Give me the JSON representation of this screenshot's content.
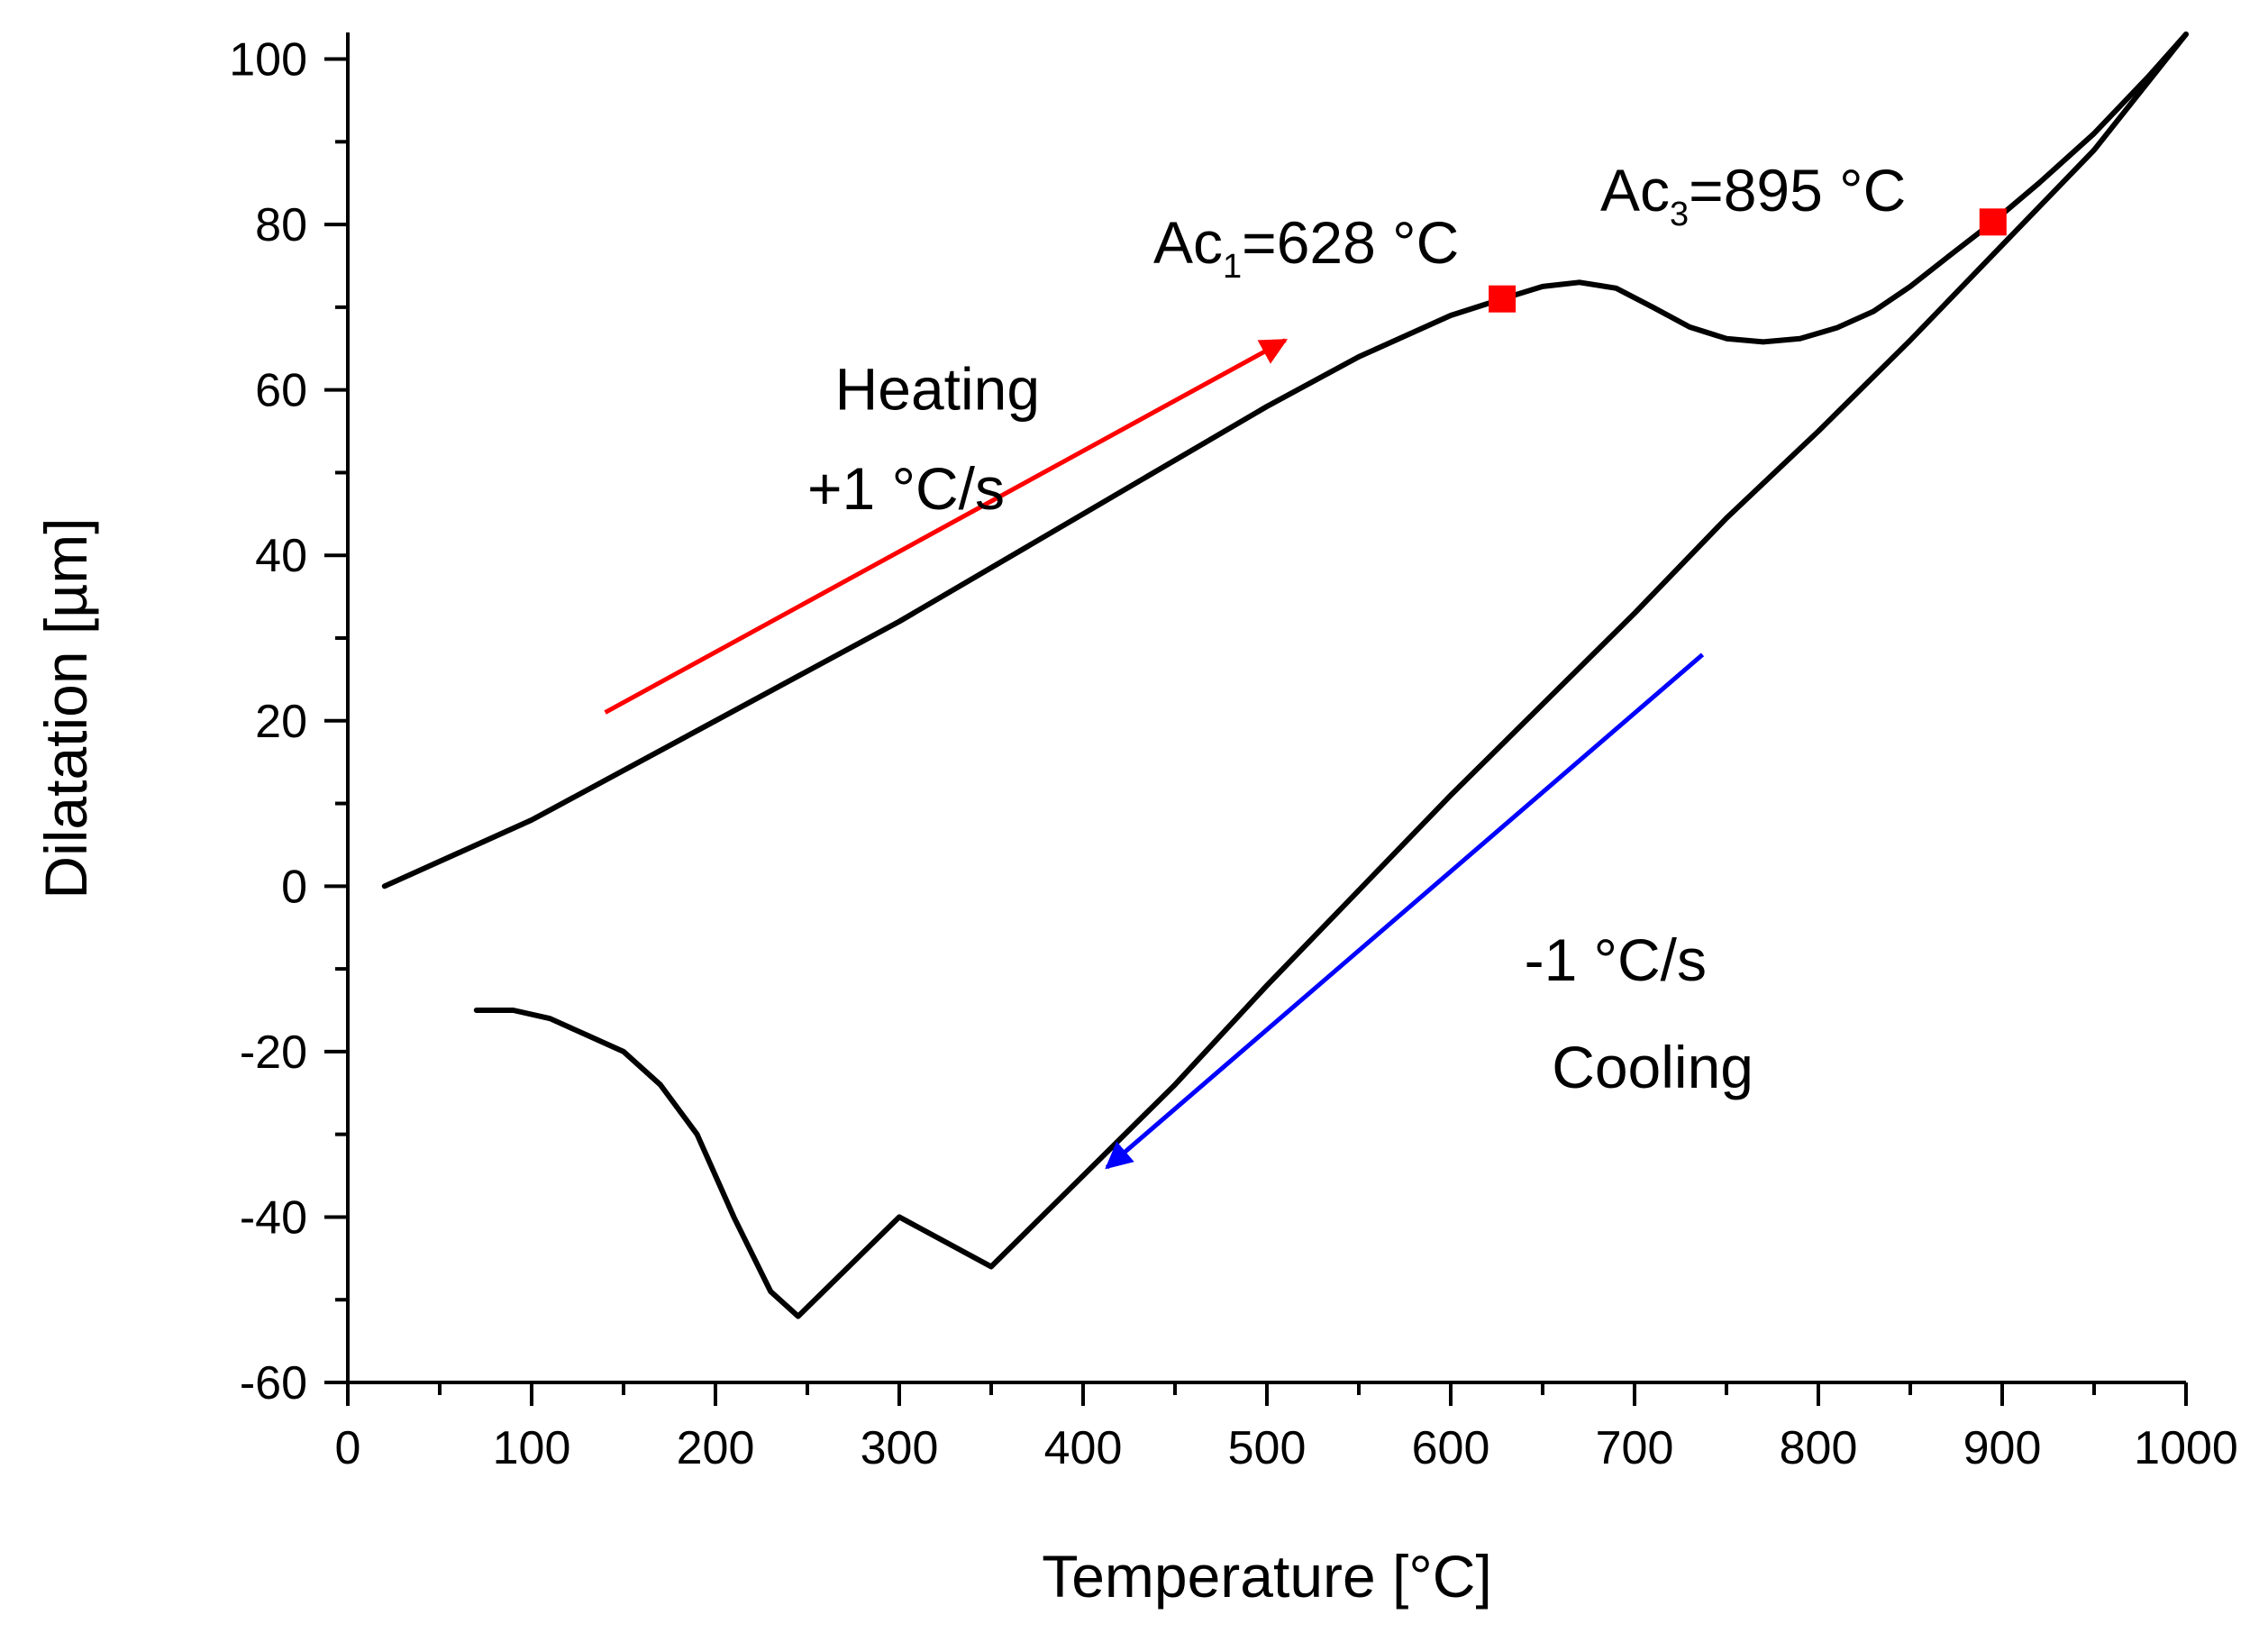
{
  "chart_data": {
    "type": "line",
    "title": "",
    "xlabel": "Temperature [°C]",
    "ylabel": "Dilatation [µm]",
    "xlim": [
      0,
      1000
    ],
    "ylim": [
      -60,
      105
    ],
    "grid": false,
    "x_ticks": [
      0,
      100,
      200,
      300,
      400,
      500,
      600,
      700,
      800,
      900,
      1000
    ],
    "y_ticks": [
      -60,
      -40,
      -20,
      0,
      20,
      40,
      60,
      80,
      100
    ],
    "x_tick_labels": [
      "0",
      "100",
      "200",
      "300",
      "400",
      "500",
      "600",
      "700",
      "800",
      "900",
      "1000"
    ],
    "y_tick_labels": [
      "-60",
      "-40",
      "-20",
      "0",
      "20",
      "40",
      "60",
      "80",
      "100"
    ],
    "series": [
      {
        "name": "heating",
        "color": "#000000",
        "x": [
          20,
          100,
          200,
          300,
          400,
          500,
          550,
          600,
          628,
          650,
          670,
          690,
          710,
          730,
          750,
          770,
          790,
          810,
          830,
          850,
          870,
          895,
          920,
          950,
          980,
          1000
        ],
        "y": [
          0,
          8,
          20,
          32,
          45,
          58,
          64,
          69,
          71,
          72.5,
          73,
          72.3,
          70,
          67.6,
          66.2,
          65.8,
          66.2,
          67.5,
          69.5,
          72.5,
          76,
          80.3,
          85,
          91,
          98,
          103
        ]
      },
      {
        "name": "cooling",
        "color": "#000000",
        "x": [
          1000,
          950,
          900,
          850,
          800,
          750,
          700,
          650,
          600,
          550,
          500,
          450,
          400,
          350,
          300,
          245,
          230,
          210,
          190,
          170,
          150,
          130,
          110,
          90,
          70
        ],
        "y": [
          103,
          89,
          77.5,
          66,
          55,
          44.5,
          33,
          22,
          11,
          -0.5,
          -12,
          -24,
          -35,
          -46,
          -40,
          -52,
          -49,
          -40,
          -30,
          -24,
          -20,
          -18,
          -16,
          -15,
          -15
        ]
      }
    ],
    "markers": [
      {
        "name": "Ac1",
        "x": 628,
        "y": 71,
        "color": "#ff0000",
        "label_base": "Ac",
        "label_sub": "1",
        "label_rest": "=628 °C"
      },
      {
        "name": "Ac3",
        "x": 895,
        "y": 80.3,
        "color": "#ff0000",
        "label_base": "Ac",
        "label_sub": "3",
        "label_rest": "=895 °C"
      }
    ],
    "arrows": [
      {
        "name": "heating-arrow",
        "color": "#ff0000",
        "from": [
          140,
          21
        ],
        "to": [
          510,
          66
        ]
      },
      {
        "name": "cooling-arrow",
        "color": "#0000ff",
        "from": [
          737,
          28
        ],
        "to": [
          413,
          -34
        ]
      }
    ],
    "annotations": [
      {
        "name": "heating-label",
        "text": "Heating",
        "x": 265,
        "y": 60
      },
      {
        "name": "heating-rate-label",
        "text": "+1 °C/s",
        "x": 250,
        "y": 48
      },
      {
        "name": "cooling-rate-label",
        "text": "-1 °C/s",
        "x": 640,
        "y": -9
      },
      {
        "name": "cooling-label",
        "text": "Cooling",
        "x": 655,
        "y": -22
      }
    ]
  }
}
